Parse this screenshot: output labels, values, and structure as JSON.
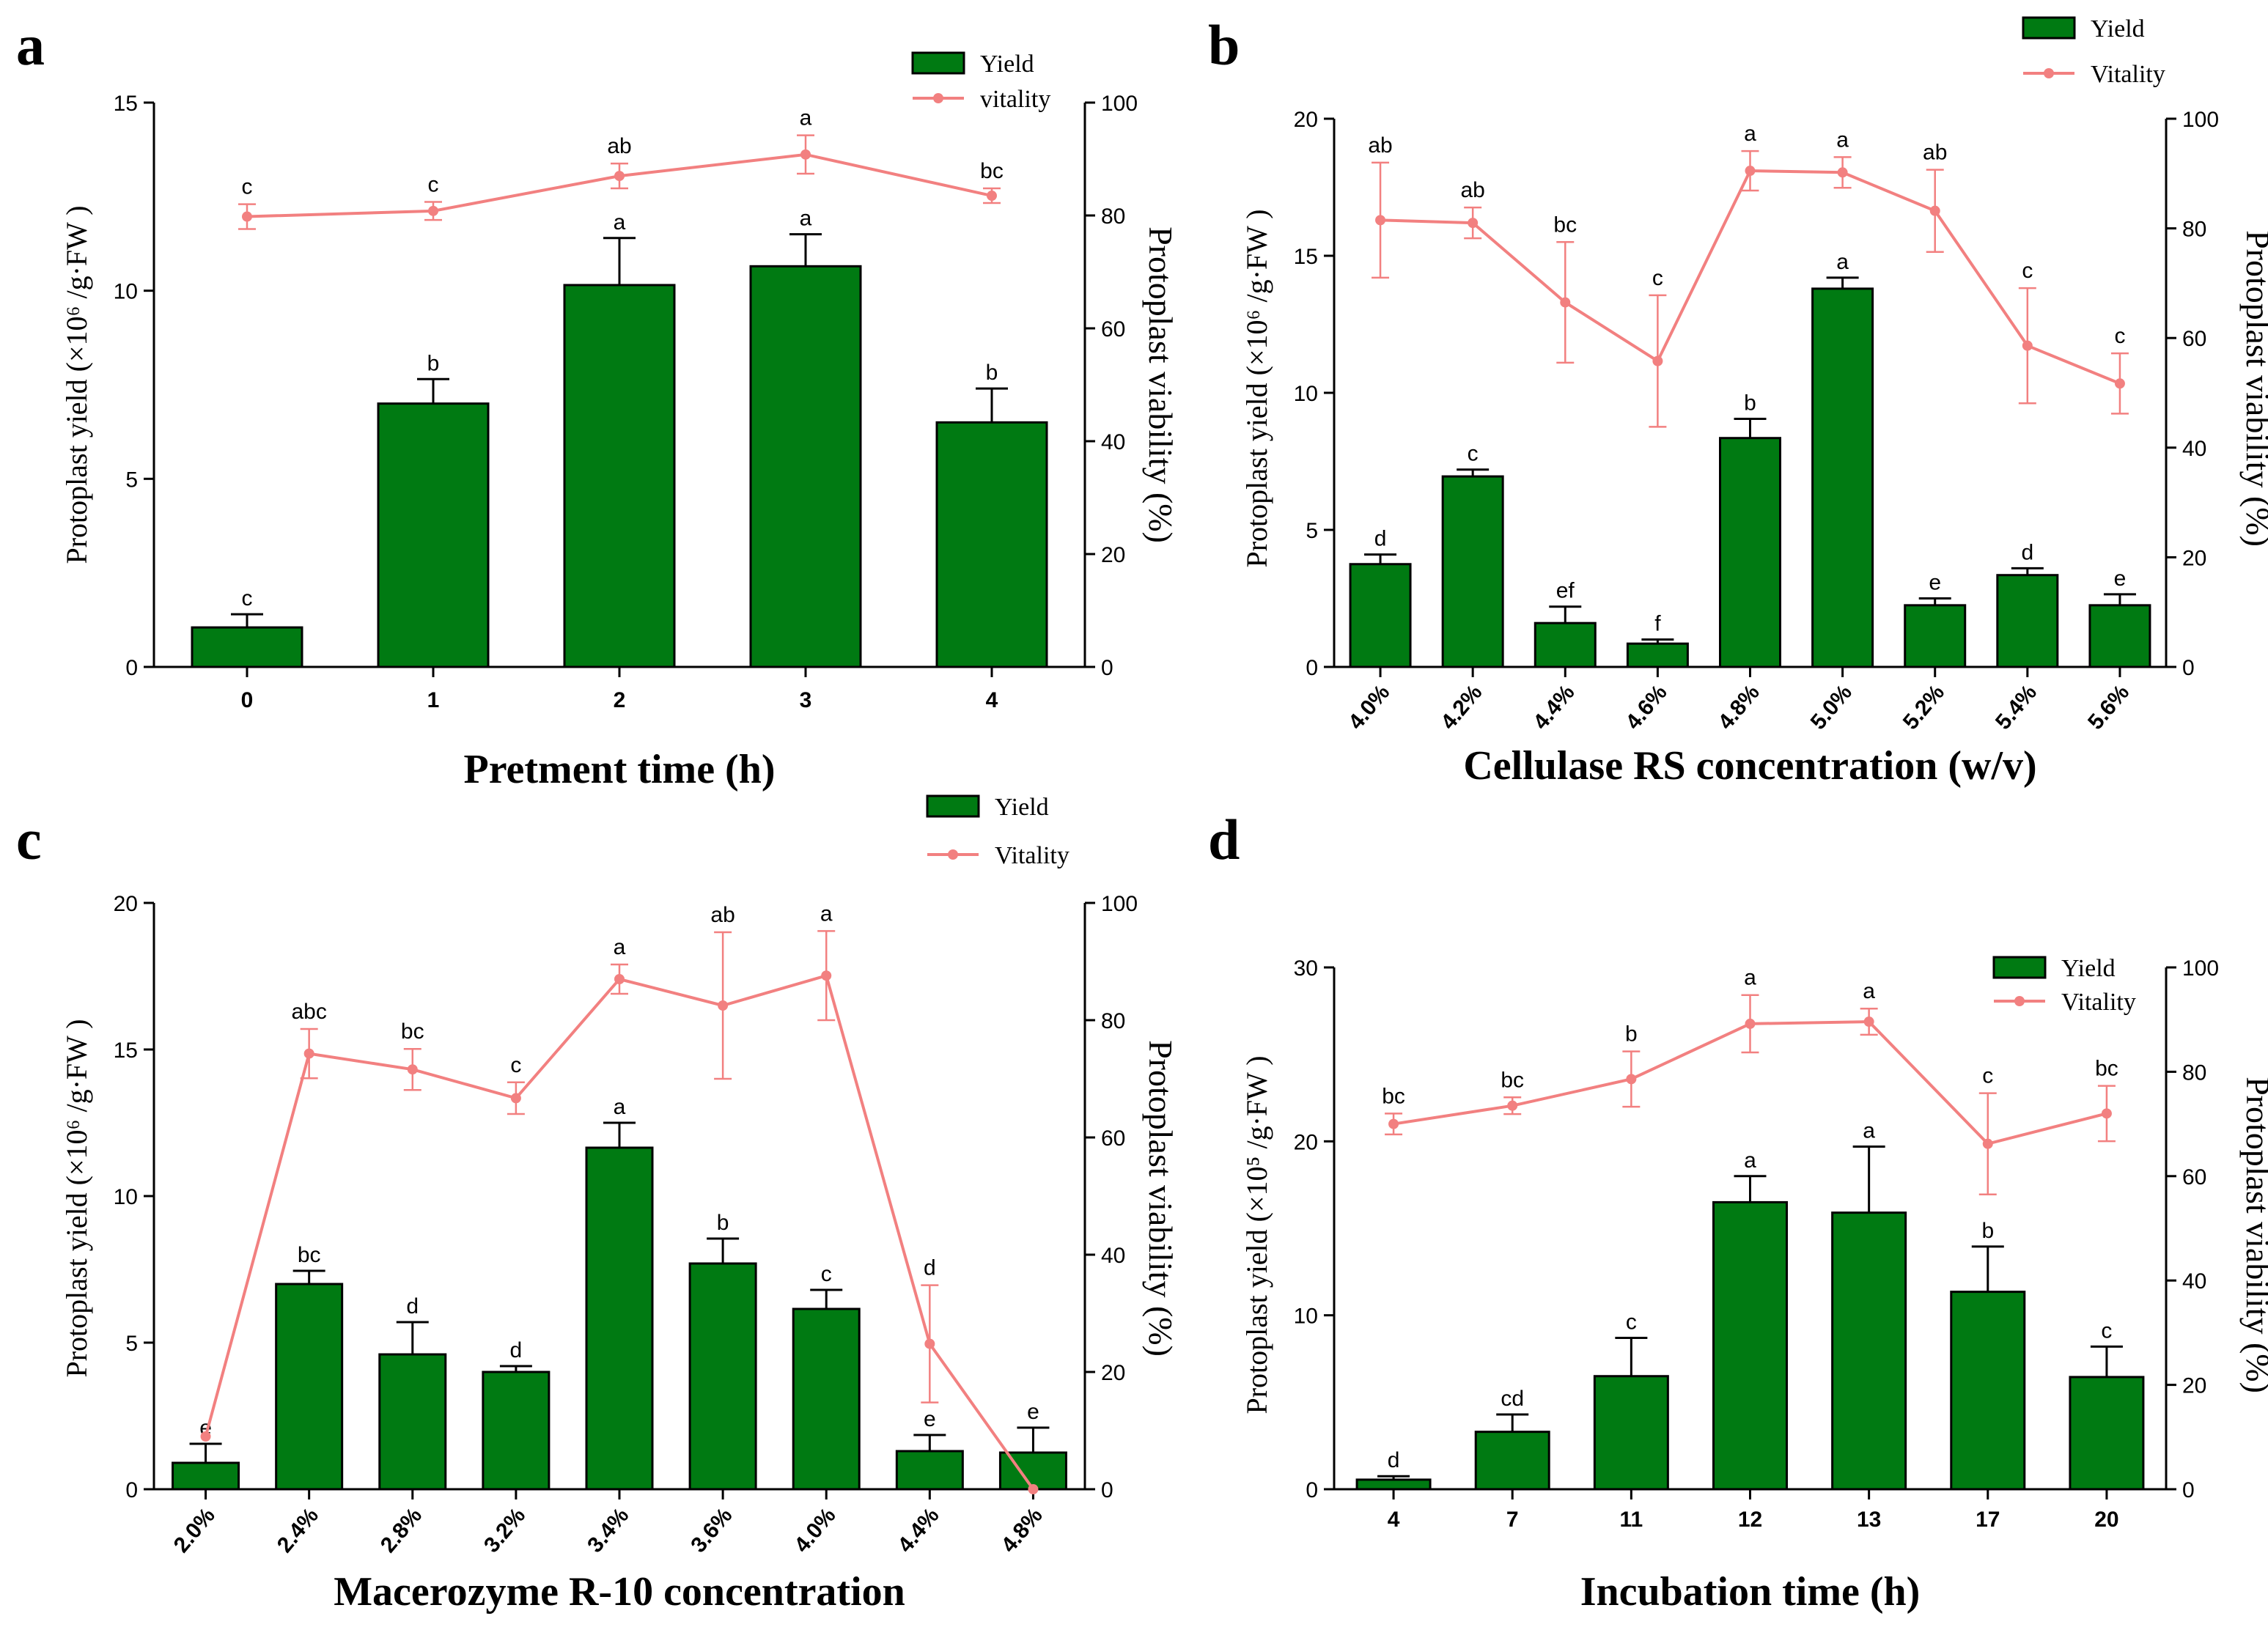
{
  "colors": {
    "bar": "#007a12",
    "bar_edge": "#000000",
    "line": "#f28080"
  },
  "chart_data": [
    {
      "panel": "a",
      "type": "bar",
      "xlabel": "Pretment time (h)",
      "ylabel_left": "Protoplast yield (×10⁶ /g·FW )",
      "ylabel_right": "Protoplast viability (%)",
      "categories": [
        "0",
        "1",
        "2",
        "3",
        "4"
      ],
      "ylim_left": [
        0,
        15
      ],
      "yticks_left": [
        0,
        5,
        10,
        15
      ],
      "ylim_right": [
        0,
        100
      ],
      "yticks_right": [
        0,
        20,
        40,
        60,
        80,
        100
      ],
      "series": [
        {
          "name": "Yield",
          "axis": "left",
          "values": [
            1.05,
            7.0,
            10.15,
            10.65,
            6.5
          ],
          "errors": [
            0.35,
            0.65,
            1.25,
            0.85,
            0.9
          ],
          "labels": [
            "c",
            "b",
            "a",
            "a",
            "b"
          ]
        },
        {
          "name": "vitality",
          "axis": "right",
          "values": [
            79.8,
            80.8,
            87.0,
            90.8,
            83.5
          ],
          "errors": [
            2.2,
            1.6,
            2.2,
            3.4,
            1.3
          ],
          "labels": [
            "c",
            "c",
            "ab",
            "a",
            "bc"
          ]
        }
      ],
      "xtick_rotate": false
    },
    {
      "panel": "b",
      "type": "bar",
      "xlabel": "Cellulase RS concentration (w/v)",
      "ylabel_left": "Protoplast yield (×10⁶ /g·FW )",
      "ylabel_right": "Protoplast viability (%)",
      "categories": [
        "4.0%",
        "4.2%",
        "4.4%",
        "4.6%",
        "4.8%",
        "5.0%",
        "5.2%",
        "5.4%",
        "5.6%"
      ],
      "ylim_left": [
        0,
        20
      ],
      "yticks_left": [
        0,
        5,
        10,
        15,
        20
      ],
      "ylim_right": [
        0,
        100
      ],
      "yticks_right": [
        0,
        20,
        40,
        60,
        80,
        100
      ],
      "series": [
        {
          "name": "Yield",
          "axis": "left",
          "values": [
            3.75,
            6.95,
            1.6,
            0.85,
            8.35,
            13.8,
            2.25,
            3.35,
            2.25
          ],
          "errors": [
            0.35,
            0.25,
            0.6,
            0.15,
            0.7,
            0.4,
            0.25,
            0.25,
            0.4
          ],
          "labels": [
            "d",
            "c",
            "ef",
            "f",
            "b",
            "a",
            "e",
            "d",
            "e"
          ]
        },
        {
          "name": "Vitality",
          "axis": "right",
          "values": [
            81.5,
            81.0,
            66.5,
            55.8,
            90.5,
            90.2,
            83.2,
            58.6,
            51.7
          ],
          "errors": [
            10.5,
            2.8,
            11.0,
            12.0,
            3.6,
            2.8,
            7.5,
            10.5,
            5.5
          ],
          "labels": [
            "ab",
            "ab",
            "bc",
            "c",
            "a",
            "a",
            "ab",
            "c",
            "c"
          ]
        }
      ],
      "xtick_rotate": true
    },
    {
      "panel": "c",
      "type": "bar",
      "xlabel": "Macerozyme R-10 concentration",
      "ylabel_left": "Protoplast yield (×10⁶ /g·FW )",
      "ylabel_right": "Protoplast viability (%)",
      "categories": [
        "2.0%",
        "2.4%",
        "2.8%",
        "3.2%",
        "3.4%",
        "3.6%",
        "4.0%",
        "4.4%",
        "4.8%"
      ],
      "ylim_left": [
        0,
        20
      ],
      "yticks_left": [
        0,
        5,
        10,
        15,
        20
      ],
      "ylim_right": [
        0,
        100
      ],
      "yticks_right": [
        0,
        20,
        40,
        60,
        80,
        100
      ],
      "series": [
        {
          "name": "Yield",
          "axis": "left",
          "values": [
            0.9,
            7.0,
            4.6,
            4.0,
            11.65,
            7.7,
            6.15,
            1.3,
            1.25
          ],
          "errors": [
            0.65,
            0.45,
            1.1,
            0.2,
            0.85,
            0.85,
            0.65,
            0.55,
            0.85
          ],
          "labels": [
            "e",
            "bc",
            "d",
            "d",
            "a",
            "b",
            "c",
            "e",
            "e"
          ]
        },
        {
          "name": "Vitality",
          "axis": "right",
          "values": [
            9.0,
            74.3,
            71.6,
            66.7,
            87.0,
            82.5,
            87.6,
            24.8,
            0.0
          ],
          "errors": [
            0,
            4.2,
            3.5,
            2.7,
            2.5,
            12.5,
            7.6,
            10.0,
            0
          ],
          "labels": [
            "",
            "abc",
            "bc",
            "c",
            "a",
            "ab",
            "a",
            "d",
            ""
          ]
        }
      ],
      "xtick_rotate": true
    },
    {
      "panel": "d",
      "type": "bar",
      "xlabel": "Incubation time (h)",
      "ylabel_left": "Protoplast yield (×10⁵ /g·FW )",
      "ylabel_right": "Protoplast viability (%)",
      "categories": [
        "4",
        "7",
        "11",
        "12",
        "13",
        "17",
        "20"
      ],
      "ylim_left": [
        0,
        30
      ],
      "yticks_left": [
        0,
        10,
        20,
        30
      ],
      "ylim_right": [
        0,
        100
      ],
      "yticks_right": [
        0,
        20,
        40,
        60,
        80,
        100
      ],
      "series": [
        {
          "name": "Yield",
          "axis": "left",
          "values": [
            0.55,
            3.3,
            6.5,
            16.5,
            15.9,
            11.35,
            6.45
          ],
          "errors": [
            0.2,
            1.0,
            2.2,
            1.5,
            3.8,
            2.6,
            1.75
          ],
          "labels": [
            "d",
            "cd",
            "c",
            "a",
            "a",
            "b",
            "c"
          ]
        },
        {
          "name": "Vitality",
          "axis": "right",
          "values": [
            70.0,
            73.5,
            78.6,
            89.2,
            89.6,
            66.2,
            72.0
          ],
          "errors": [
            2.0,
            1.6,
            5.3,
            5.5,
            2.5,
            9.7,
            5.3
          ],
          "labels": [
            "bc",
            "bc",
            "b",
            "a",
            "a",
            "c",
            "bc"
          ]
        }
      ],
      "xtick_rotate": false
    }
  ]
}
